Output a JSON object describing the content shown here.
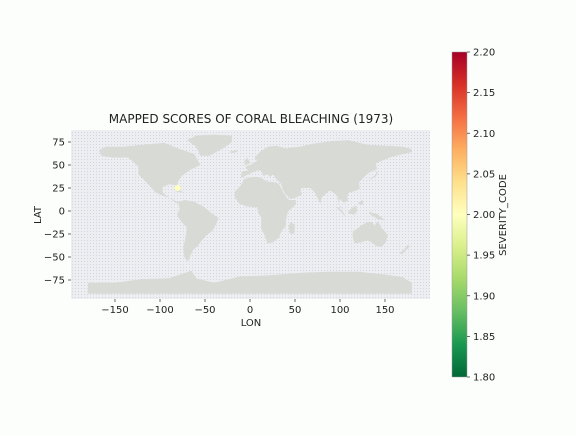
{
  "chart_data": {
    "type": "scatter",
    "title": "MAPPED SCORES OF CORAL BLEACHING (1973)",
    "xlabel": "LON",
    "ylabel": "LAT",
    "xlim": [
      -200,
      200
    ],
    "ylim": [
      -90,
      90
    ],
    "x_ticks": [
      -150,
      -100,
      -50,
      0,
      50,
      100,
      150
    ],
    "y_ticks": [
      75,
      50,
      25,
      0,
      -25,
      -50,
      -75
    ],
    "grid": false,
    "colorbar": {
      "label": "SEVERITY_CODE",
      "range": [
        1.8,
        2.2
      ],
      "ticks": [
        1.8,
        1.85,
        1.9,
        1.95,
        2.0,
        2.05,
        2.1,
        2.15,
        2.2
      ],
      "tick_labels": [
        "1.80",
        "1.85",
        "1.90",
        "1.95",
        "2.00",
        "2.05",
        "2.10",
        "2.15",
        "2.20"
      ],
      "colormap": "RdYlGn_r",
      "colors": [
        "#006837",
        "#1a9850",
        "#66bd63",
        "#a6d96a",
        "#d9ef8b",
        "#ffffbf",
        "#fee08b",
        "#fdae61",
        "#f46d43",
        "#d73027",
        "#a50026"
      ]
    },
    "points": [
      {
        "lon": -80.5,
        "lat": 25.0,
        "value": 2.0,
        "color": "#ffffbf"
      }
    ],
    "colors": {
      "ocean": "#e8eaf0",
      "land": "#d8dad6",
      "background": "#fcfefc"
    }
  }
}
